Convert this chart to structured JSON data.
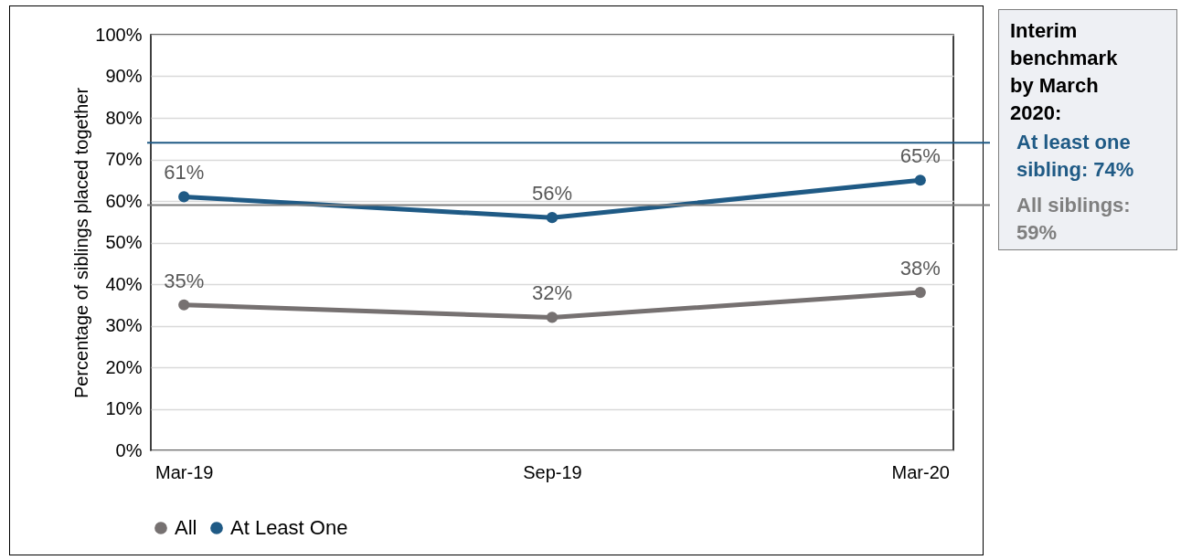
{
  "chart_data": {
    "type": "line",
    "ylabel": "Percentage of siblings placed together",
    "categories": [
      "Mar-19",
      "Sep-19",
      "Mar-20"
    ],
    "series": [
      {
        "name": "All",
        "color": "#767171",
        "values": [
          35,
          32,
          38
        ],
        "value_labels": [
          "35%",
          "32%",
          "38%"
        ]
      },
      {
        "name": "At Least One",
        "color": "#1f5a85",
        "values": [
          61,
          56,
          65
        ],
        "value_labels": [
          "61%",
          "56%",
          "65%"
        ]
      }
    ],
    "ylim": [
      0,
      100
    ],
    "yticks": [
      {
        "value": 0,
        "label": "0%"
      },
      {
        "value": 10,
        "label": "10%"
      },
      {
        "value": 20,
        "label": "20%"
      },
      {
        "value": 30,
        "label": "30%"
      },
      {
        "value": 40,
        "label": "40%"
      },
      {
        "value": 50,
        "label": "50%"
      },
      {
        "value": 60,
        "label": "60%"
      },
      {
        "value": 70,
        "label": "70%"
      },
      {
        "value": 80,
        "label": "80%"
      },
      {
        "value": 90,
        "label": "90%"
      },
      {
        "value": 100,
        "label": "100%"
      }
    ],
    "grid": "y",
    "legend": "bottom",
    "marker": "circle",
    "line_style": "solid",
    "ref_lines": [
      {
        "axis": "y",
        "value": 74,
        "label": "At least one sibling: 74%",
        "color": "#1f5a85"
      },
      {
        "axis": "y",
        "value": 59,
        "label": "All siblings: 59%",
        "color": "#7f7f7f"
      }
    ],
    "annotations": [
      "Interim benchmark by March 2020:"
    ]
  }
}
